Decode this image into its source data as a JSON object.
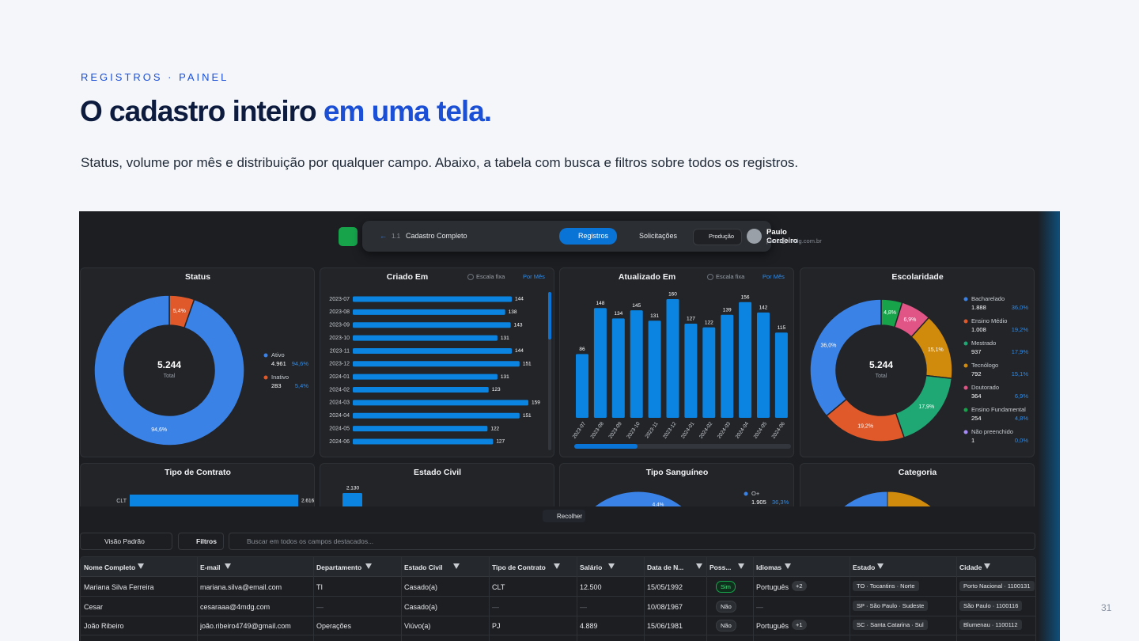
{
  "slide": {
    "eyebrow": "REGISTROS · PAINEL",
    "title": "O cadastro inteiro",
    "title_accent": "em uma tela.",
    "subtitle": "Status, volume por mês e distribuição por qualquer campo. Abaixo, a tabela com busca e filtros sobre todos os registros.",
    "page": "31"
  },
  "app": {
    "breadcrumb_num": "1.1",
    "breadcrumb": "Cadastro Completo",
    "tabs": [
      "Registros",
      "Solicitações"
    ],
    "env": "Produção",
    "user_name": "Paulo Cordeiro",
    "user_email": "paulo@4mdg.com.br",
    "collapse": "Recolher",
    "view": "Visão Padrão",
    "filters": "Filtros",
    "search": "Buscar em todos os campos destacados..."
  },
  "status": {
    "title": "Status",
    "center_value": "5.244",
    "center_label": "Total",
    "slices": [
      {
        "name": "Ativo",
        "count": "4.961",
        "pct": 94.6,
        "pct_label": "94,6%",
        "color": "#3b82e6"
      },
      {
        "name": "Inativo",
        "count": "283",
        "pct": 5.4,
        "pct_label": "5,4%",
        "color": "#e0592a"
      }
    ]
  },
  "created": {
    "title": "Criado Em",
    "toggle_fixed": "Escala fixa",
    "toggle_month": "Por Mês",
    "categories": [
      "2023-07",
      "2023-08",
      "2023-09",
      "2023-10",
      "2023-11",
      "2023-12",
      "2024-01",
      "2024-02",
      "2024-03",
      "2024-04",
      "2024-05",
      "2024-06"
    ],
    "values": [
      144,
      138,
      143,
      131,
      144,
      151,
      131,
      123,
      159,
      151,
      122,
      127
    ],
    "color": "#0a84e0"
  },
  "updated": {
    "title": "Atualizado Em",
    "toggle_fixed": "Escala fixa",
    "toggle_month": "Por Mês",
    "categories": [
      "2023-07",
      "2023-08",
      "2023-09",
      "2023-10",
      "2023-11",
      "2023-12",
      "2024-01",
      "2024-02",
      "2024-03",
      "2024-04",
      "2024-05",
      "2024-06"
    ],
    "values": [
      86,
      148,
      134,
      145,
      131,
      160,
      127,
      122,
      139,
      156,
      142,
      115
    ],
    "color": "#0a84e0"
  },
  "education": {
    "title": "Escolaridade",
    "center_value": "5.244",
    "center_label": "Total",
    "slices": [
      {
        "name": "Bacharelado",
        "count": "1.888",
        "pct": 36.0,
        "pct_label": "36,0%",
        "color": "#3b82e6"
      },
      {
        "name": "Ensino Médio",
        "count": "1.008",
        "pct": 19.2,
        "pct_label": "19,2%",
        "color": "#e0592a"
      },
      {
        "name": "Mestrado",
        "count": "937",
        "pct": 17.9,
        "pct_label": "17,9%",
        "color": "#1fa874"
      },
      {
        "name": "Tecnólogo",
        "count": "792",
        "pct": 15.1,
        "pct_label": "15,1%",
        "color": "#d08a0c"
      },
      {
        "name": "Doutorado",
        "count": "364",
        "pct": 6.9,
        "pct_label": "6,9%",
        "color": "#e05586"
      },
      {
        "name": "Ensino Fundamental",
        "count": "254",
        "pct": 4.8,
        "pct_label": "4,8%",
        "color": "#16a34a"
      },
      {
        "name": "Não preenchido",
        "count": "1",
        "pct": 0.0,
        "pct_label": "0,0%",
        "color": "#a78bfa"
      }
    ]
  },
  "lower": {
    "titles": [
      "Tipo de Contrato",
      "Estado Civil",
      "Tipo Sanguíneo",
      "Categoria"
    ],
    "contract_category": "CLT",
    "contract_value": "2.616",
    "civil_value": "2.130",
    "blood_legend": {
      "name": "O+",
      "count": "1.905",
      "pct_label": "36,3%"
    },
    "blood_slice_label": "4,4%"
  },
  "table": {
    "headers": [
      "Nome Completo",
      "E-mail",
      "Departamento",
      "Estado Civil",
      "Tipo de Contrato",
      "Salário",
      "Data de N...",
      "Poss...",
      "Idiomas",
      "Estado",
      "Cidade"
    ],
    "rows": [
      [
        "Mariana Silva Ferreira",
        "mariana.silva@email.com",
        "TI",
        "Casado(a)",
        "CLT",
        "12.500",
        "15/05/1992",
        "Sim",
        {
          "text": "Português",
          "more": "+2"
        },
        "TO · Tocantins · Norte",
        "Porto Nacional · 1100131"
      ],
      [
        "Cesar",
        "cesaraaa@4mdg.com",
        "—",
        "Casado(a)",
        "—",
        "—",
        "10/08/1967",
        "Não",
        "—",
        "SP · São Paulo · Sudeste",
        "São Paulo · 1100116"
      ],
      [
        "João Ribeiro",
        "joão.ribeiro4749@gmail.com",
        "Operações",
        "Viúvo(a)",
        "PJ",
        "4.889",
        "15/06/1981",
        "Não",
        {
          "text": "Português",
          "more": "+1"
        },
        "SC · Santa Catarina · Sul",
        "Blumenau · 1100112"
      ]
    ]
  }
}
